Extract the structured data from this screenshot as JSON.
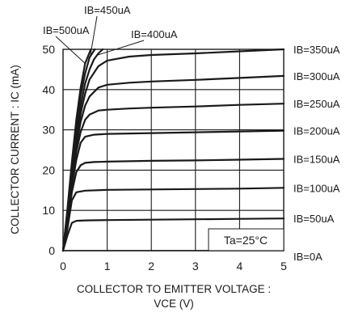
{
  "chart_data": {
    "type": "line",
    "title": "",
    "xlabel": "COLLECTOR TO EMITTER VOLTAGE :",
    "xlabel_line2": "VCE (V)",
    "ylabel": "COLLECTOR CURRENT : IC (mA)",
    "xlim": [
      0,
      5
    ],
    "ylim": [
      0,
      50
    ],
    "x_ticks": [
      0,
      1,
      2,
      3,
      4,
      5
    ],
    "y_ticks": [
      0,
      10,
      20,
      30,
      40,
      50
    ],
    "grid": true,
    "legend": "none",
    "annotation": "Ta=25°C",
    "line_color": "#1a1a1a",
    "series": [
      {
        "name": "IB=0A",
        "x": [
          0,
          5
        ],
        "y": [
          0,
          0
        ]
      },
      {
        "name": "IB=50uA",
        "x": [
          0,
          0.1,
          0.2,
          0.3,
          0.5,
          1,
          2,
          3,
          4,
          5
        ],
        "y": [
          0,
          3.8,
          6.9,
          7.4,
          7.5,
          7.6,
          7.7,
          7.8,
          7.9,
          8.0
        ]
      },
      {
        "name": "IB=100uA",
        "x": [
          0,
          0.1,
          0.2,
          0.3,
          0.5,
          1,
          2,
          3,
          4,
          5
        ],
        "y": [
          0,
          5.5,
          12.5,
          14.5,
          14.9,
          15.1,
          15.2,
          15.3,
          15.4,
          15.6
        ]
      },
      {
        "name": "IB=150uA",
        "x": [
          0,
          0.1,
          0.2,
          0.3,
          0.4,
          0.5,
          0.7,
          1,
          2,
          3,
          4,
          5
        ],
        "y": [
          0,
          6.5,
          14.5,
          19.5,
          21.2,
          21.8,
          22.0,
          22.1,
          22.3,
          22.4,
          22.6,
          22.8
        ]
      },
      {
        "name": "IB=200uA",
        "x": [
          0,
          0.1,
          0.2,
          0.3,
          0.4,
          0.5,
          0.7,
          1,
          2,
          3,
          4,
          5
        ],
        "y": [
          0,
          7.5,
          16,
          22.5,
          26.8,
          28.3,
          28.8,
          29.0,
          29.2,
          29.4,
          29.6,
          29.8
        ]
      },
      {
        "name": "IB=250uA",
        "x": [
          0,
          0.1,
          0.2,
          0.3,
          0.4,
          0.5,
          0.6,
          0.8,
          1,
          1.5,
          2,
          3,
          4,
          5
        ],
        "y": [
          0,
          8,
          17,
          24.5,
          29.5,
          32.5,
          33.8,
          34.8,
          35.0,
          35.3,
          35.5,
          35.8,
          36.2,
          36.5
        ]
      },
      {
        "name": "IB=300uA",
        "x": [
          0,
          0.1,
          0.2,
          0.3,
          0.4,
          0.5,
          0.6,
          0.8,
          1,
          1.5,
          2,
          3,
          4,
          5
        ],
        "y": [
          0,
          8.5,
          18,
          26,
          32,
          36,
          38.3,
          40.5,
          41.2,
          41.7,
          42.0,
          42.4,
          42.9,
          43.4
        ]
      },
      {
        "name": "IB=350uA",
        "x": [
          0,
          0.1,
          0.2,
          0.3,
          0.4,
          0.5,
          0.6,
          0.8,
          1,
          1.5,
          2,
          3,
          4,
          5
        ],
        "y": [
          0,
          9,
          19,
          27.5,
          34,
          39,
          42.5,
          45.8,
          47.2,
          48.2,
          48.6,
          49.0,
          49.5,
          50.0
        ]
      },
      {
        "name": "IB=400uA",
        "x": [
          0,
          0.1,
          0.2,
          0.3,
          0.4,
          0.5,
          0.6,
          0.7,
          0.8,
          0.9
        ],
        "y": [
          0,
          9.5,
          20,
          29,
          36,
          41.5,
          45,
          47.5,
          49,
          50
        ]
      },
      {
        "name": "IB=450uA",
        "x": [
          0,
          0.1,
          0.2,
          0.3,
          0.4,
          0.5,
          0.6,
          0.72
        ],
        "y": [
          0,
          10,
          21,
          31,
          38.5,
          44,
          48,
          50
        ]
      },
      {
        "name": "IB=500uA",
        "x": [
          0,
          0.1,
          0.2,
          0.3,
          0.4,
          0.5,
          0.63
        ],
        "y": [
          0,
          10.5,
          22,
          32.5,
          40.5,
          46.5,
          50
        ]
      }
    ]
  }
}
